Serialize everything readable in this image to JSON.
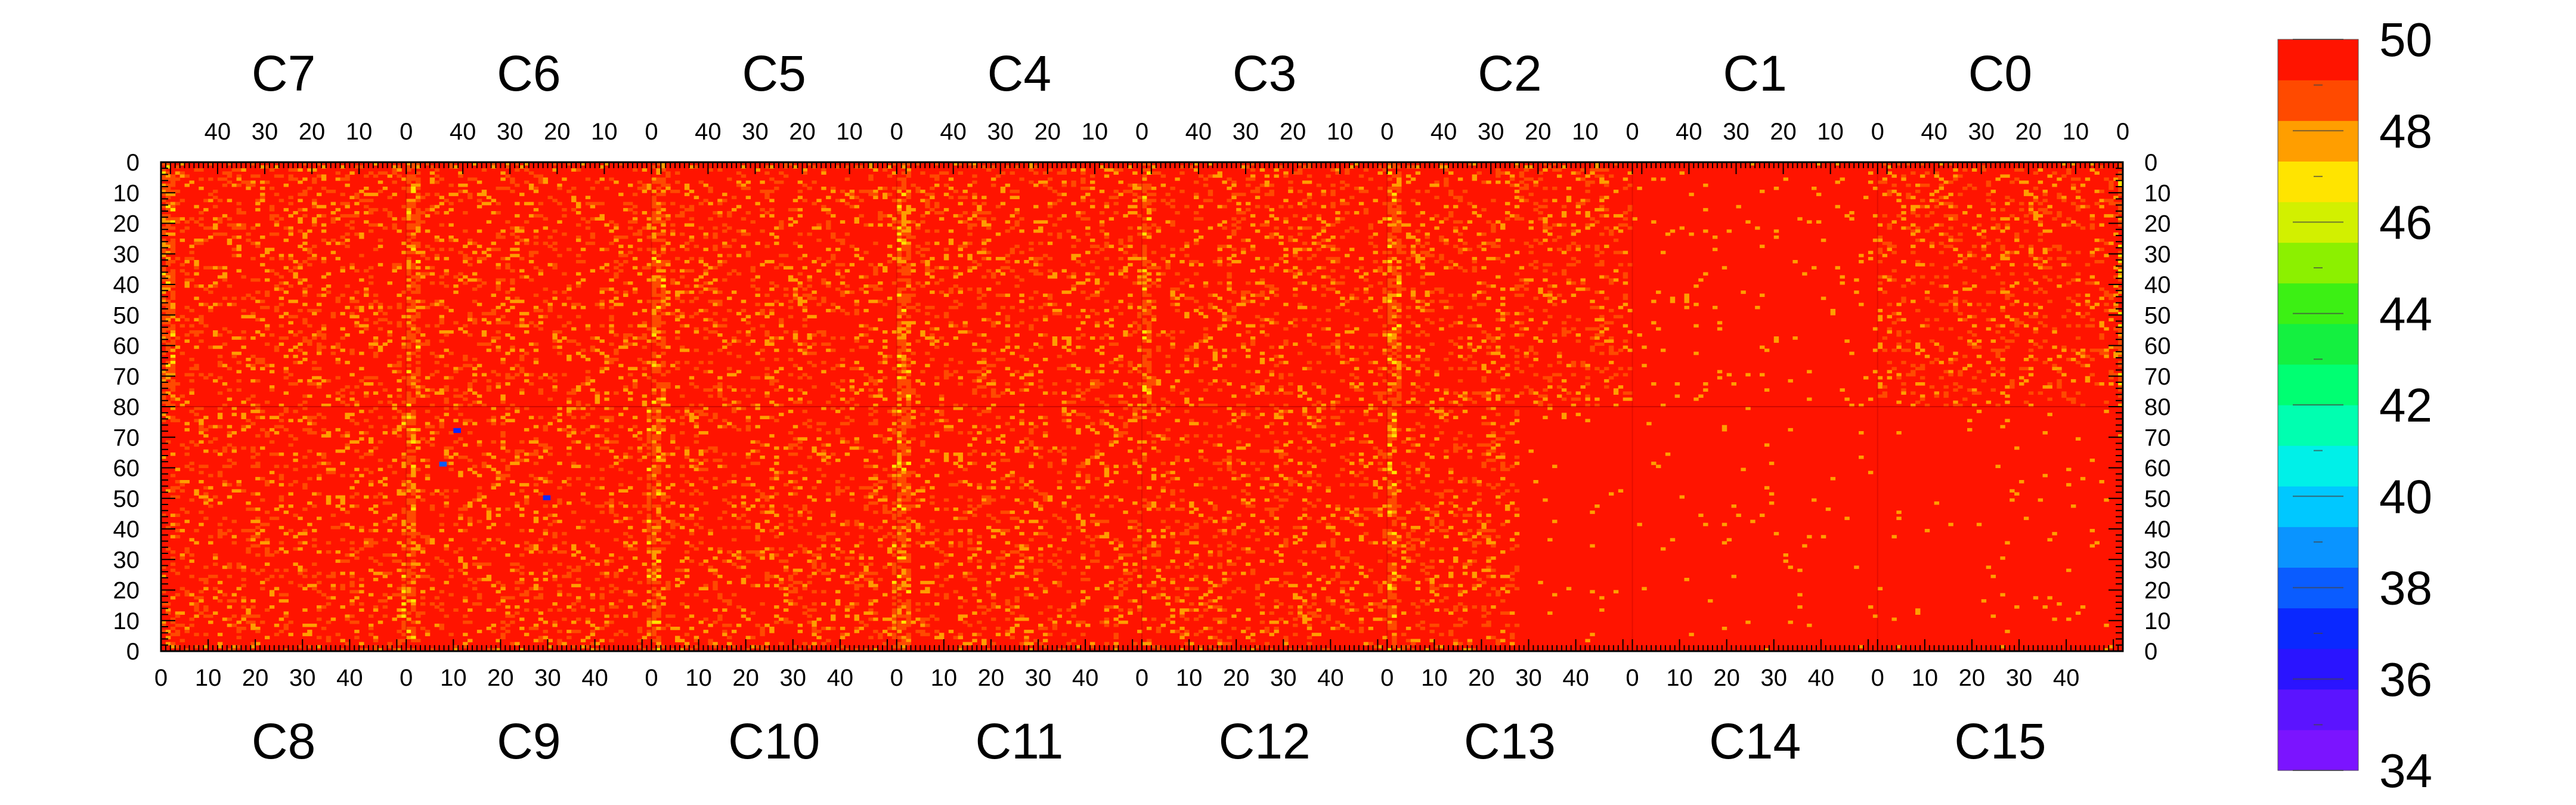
{
  "chart_data": {
    "type": "heatmap",
    "top_chip_labels": [
      "C7",
      "C6",
      "C5",
      "C4",
      "C3",
      "C2",
      "C1",
      "C0"
    ],
    "bottom_chip_labels": [
      "C8",
      "C9",
      "C10",
      "C11",
      "C12",
      "C13",
      "C14",
      "C15"
    ],
    "top_x_tick_labels": [
      "40",
      "30",
      "20",
      "10",
      "0"
    ],
    "bottom_x_tick_labels": [
      "0",
      "10",
      "20",
      "30",
      "40"
    ],
    "top_y_tick_labels": [
      "0",
      "10",
      "20",
      "30",
      "40",
      "50",
      "60",
      "70",
      "80"
    ],
    "bottom_y_tick_labels": [
      "70",
      "60",
      "50",
      "40",
      "30",
      "20",
      "10",
      "0"
    ],
    "columns_per_chip": 52,
    "rows_per_half": 80,
    "z_range": [
      34,
      50
    ],
    "colorbar_tick_labels": [
      "50",
      "48",
      "46",
      "44",
      "42",
      "40",
      "38",
      "36",
      "34"
    ],
    "colorbar_levels": [
      34,
      35,
      36,
      37,
      38,
      39,
      40,
      41,
      42,
      43,
      44,
      45,
      46,
      47,
      48,
      49,
      50
    ],
    "palette": [
      "#7b14ff",
      "#5b14ff",
      "#2a14ff",
      "#0a28ff",
      "#0a5cff",
      "#0a94ff",
      "#00c8ff",
      "#00f0e8",
      "#00ffb0",
      "#00ff72",
      "#14f040",
      "#3cf014",
      "#8cf000",
      "#d2f000",
      "#ffe400",
      "#ff9e00",
      "#ff4a00",
      "#ff1400"
    ],
    "background_value": 50,
    "typical_low_value": 48,
    "hot_columns": {
      "C7": [
        0,
        1,
        2
      ],
      "C6": [
        0,
        1,
        2
      ],
      "C5": [
        0,
        1,
        2
      ],
      "C4": [
        0,
        1,
        2
      ],
      "C3": [
        0,
        1
      ],
      "C2": [
        0,
        1,
        2
      ],
      "C1": [],
      "C0": [
        51
      ],
      "C8": [
        51
      ],
      "C9": [
        0,
        1,
        51
      ],
      "C10": [
        0,
        1,
        51
      ],
      "C11": [
        0,
        1,
        2
      ],
      "C12": [],
      "C13": [
        0,
        1
      ],
      "C14": [],
      "C15": []
    },
    "quiet_regions": [
      "C1",
      "C13 columns 28-51",
      "C14",
      "C15"
    ],
    "outliers": [
      {
        "chip": "C9",
        "col": 10,
        "row": 72,
        "value": 37
      },
      {
        "chip": "C9",
        "col": 7,
        "row": 61,
        "value": 38
      },
      {
        "chip": "C9",
        "col": 29,
        "row": 50,
        "value": 37
      }
    ]
  }
}
